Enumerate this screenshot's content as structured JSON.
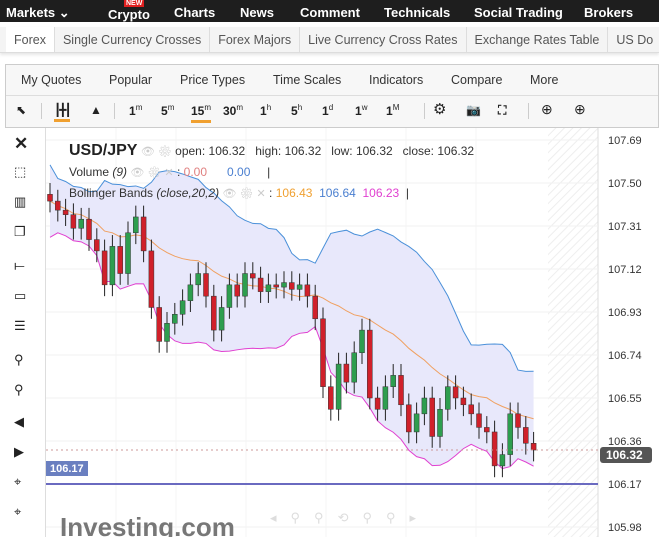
{
  "topnav": {
    "items": [
      "Markets ⌄",
      "Crypto",
      "Charts",
      "News",
      "Comment",
      "Technicals",
      "Social Trading",
      "Brokers"
    ],
    "new_badge": "NEW"
  },
  "subnav": {
    "items": [
      "Forex",
      "Single Currency Crosses",
      "Forex Majors",
      "Live Currency Cross Rates",
      "Exchange Rates Table",
      "US Do"
    ]
  },
  "menu": {
    "items": [
      "My Quotes",
      "Popular",
      "Price Types",
      "Time Scales",
      "Indicators",
      "Compare",
      "More"
    ]
  },
  "timescales": [
    {
      "n": "1",
      "u": "m"
    },
    {
      "n": "5",
      "u": "m"
    },
    {
      "n": "15",
      "u": "m"
    },
    {
      "n": "30",
      "u": "m"
    },
    {
      "n": "1",
      "u": "h"
    },
    {
      "n": "5",
      "u": "h"
    },
    {
      "n": "1",
      "u": "d"
    },
    {
      "n": "1",
      "u": "w"
    },
    {
      "n": "1",
      "u": "M"
    }
  ],
  "legend": {
    "symbol": "USD/JPY",
    "ohlc": "open: 106.32   high: 106.32   low: 106.32   close: 106.32",
    "volume_label": "Volume",
    "volume_param": "(9)",
    "vol1": "0.00",
    "vol2": "0.00",
    "bb_label": "Bollinger Bands",
    "bb_param": "(close,20,2)",
    "bb_mid": "106.43",
    "bb_up": "106.64",
    "bb_low": "106.23"
  },
  "colors": {
    "up": "#2e9e4f",
    "down": "#d0202a",
    "bb_upper": "#4a90d9",
    "bb_mid": "#f0a060",
    "bb_lower": "#e040d0",
    "band": "#e8e8fb",
    "hline": "#6a6ac0"
  },
  "yaxis": {
    "min": 105.98,
    "max": 107.69,
    "ticks": [
      "107.69",
      "107.50",
      "107.31",
      "107.12",
      "106.93",
      "106.74",
      "106.55",
      "106.36",
      "106.17",
      "105.98"
    ]
  },
  "current_price": "106.32",
  "hline_label": "106.17",
  "hline_value": 106.17,
  "watermark": "Investing.com",
  "chart_data": {
    "type": "candlestick",
    "closes": [
      107.42,
      107.38,
      107.36,
      107.3,
      107.34,
      107.25,
      107.2,
      107.05,
      107.22,
      107.1,
      107.28,
      107.35,
      107.2,
      106.95,
      106.8,
      106.88,
      106.92,
      106.98,
      107.05,
      107.1,
      107.0,
      106.85,
      106.95,
      107.05,
      107.0,
      107.1,
      107.08,
      107.02,
      107.05,
      107.04,
      107.06,
      107.03,
      107.05,
      107.0,
      106.9,
      106.6,
      106.5,
      106.7,
      106.62,
      106.75,
      106.85,
      106.55,
      106.5,
      106.6,
      106.65,
      106.52,
      106.4,
      106.48,
      106.55,
      106.38,
      106.5,
      106.6,
      106.55,
      106.52,
      106.48,
      106.42,
      106.4,
      106.25,
      106.3,
      106.48,
      106.42,
      106.35,
      106.32
    ]
  }
}
